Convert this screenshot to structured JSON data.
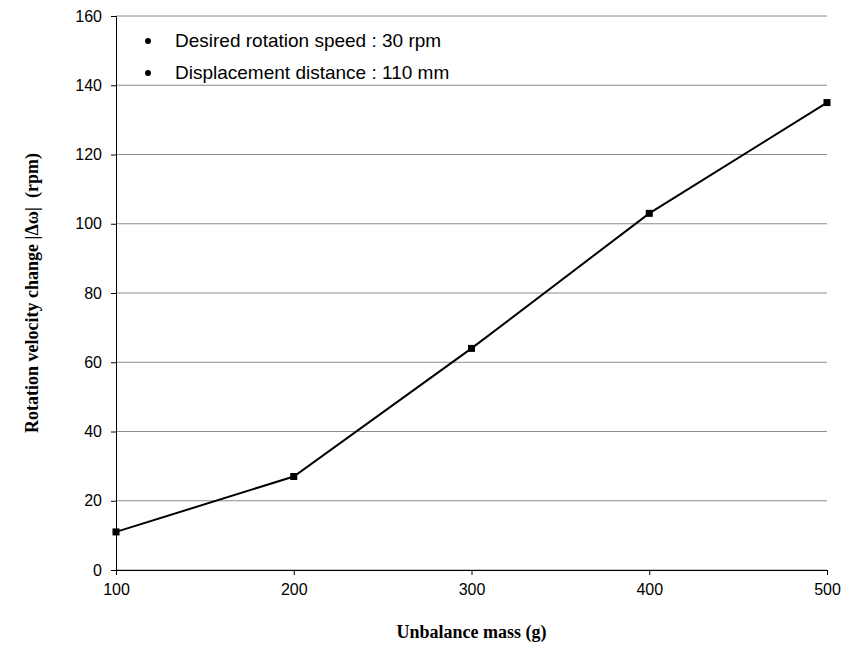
{
  "chart_data": {
    "type": "line",
    "x_label": "Unbalance mass (g)",
    "y_label": "Rotation velocity change |Δω|  (rpm)",
    "annotations": [
      "Desired rotation speed : 30 rpm",
      "Displacement distance : 110 mm"
    ],
    "x": [
      100,
      200,
      300,
      400,
      500
    ],
    "values": [
      11,
      27,
      64,
      103,
      135
    ],
    "color": "#000000",
    "marker": "square",
    "line_style": "solid",
    "xlim": [
      100,
      500
    ],
    "xticks": [
      100,
      200,
      300,
      400,
      500
    ],
    "ylim": [
      0,
      160
    ],
    "yticks": [
      0,
      20,
      40,
      60,
      80,
      100,
      120,
      140,
      160
    ],
    "grid": true
  }
}
